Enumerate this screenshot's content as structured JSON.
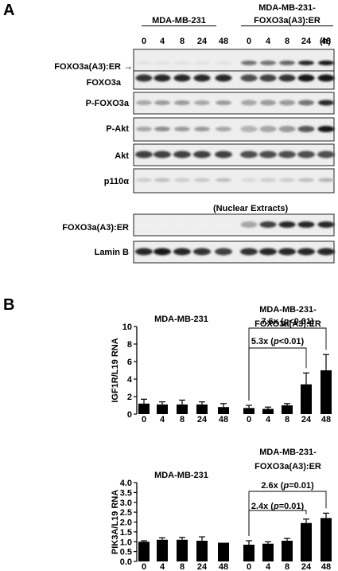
{
  "panel_a": {
    "letter": "A",
    "group1": "MDA-MB-231",
    "group2_line1": "MDA-MB-231-",
    "group2_line2": "FOXO3a(A3):ER",
    "timepoints": [
      "0",
      "4",
      "8",
      "24",
      "48"
    ],
    "time_unit": "(h)",
    "arrow": "→",
    "nuclear_extracts": "(Nuclear Extracts)",
    "blots": [
      {
        "name": "FOXO3a(A3):ER",
        "name2": "FOXO3a"
      },
      {
        "name": "P-FOXO3a"
      },
      {
        "name": "P-Akt"
      },
      {
        "name": "Akt"
      },
      {
        "name": "p110α"
      },
      {
        "name": "FOXO3a(A3):ER"
      },
      {
        "name": "Lamin B"
      }
    ]
  },
  "panel_b": {
    "letter": "B",
    "chart_data": [
      {
        "type": "bar",
        "ylabel": "IGF1R/L19 RNA",
        "ylim": [
          0,
          10
        ],
        "yticks": [
          "0",
          "2",
          "4",
          "6",
          "8",
          "10"
        ],
        "categories": [
          "0",
          "4",
          "8",
          "24",
          "48",
          "0",
          "4",
          "8",
          "24",
          "48"
        ],
        "group_labels": [
          "MDA-MB-231",
          "MDA-MB-231-",
          "FOXO3a(A3):ER"
        ],
        "values": [
          1.2,
          1.1,
          1.1,
          1.1,
          0.8,
          0.7,
          0.6,
          1.0,
          3.4,
          5.0
        ],
        "errors": [
          0.5,
          0.3,
          0.5,
          0.3,
          0.4,
          0.3,
          0.2,
          0.2,
          1.3,
          1.8
        ],
        "annotations": [
          {
            "prefix": "7.6x (",
            "italic": "p",
            "suffix": "<0.01)"
          },
          {
            "prefix": "5.3x (",
            "italic": "p",
            "suffix": "<0.01)"
          }
        ]
      },
      {
        "type": "bar",
        "ylabel": "PIK3A/L19 RNA",
        "ylim": [
          0,
          4
        ],
        "yticks": [
          "0.0",
          "0.5",
          "1.0",
          "1.5",
          "2.0",
          "2.5",
          "3.0",
          "3.5",
          "4.0"
        ],
        "categories": [
          "0",
          "4",
          "8",
          "24",
          "48",
          "0",
          "4",
          "8",
          "24",
          "48"
        ],
        "group_labels": [
          "MDA-MB-231",
          "MDA-MB-231-",
          "FOXO3a(A3):ER"
        ],
        "values": [
          1.0,
          1.1,
          1.1,
          1.05,
          0.95,
          0.85,
          0.9,
          1.05,
          1.95,
          2.2
        ],
        "errors": [
          0.05,
          0.1,
          0.12,
          0.2,
          0.0,
          0.2,
          0.1,
          0.12,
          0.2,
          0.25
        ],
        "annotations": [
          {
            "prefix": "2.6x (",
            "italic": "p",
            "suffix": "=0.01)"
          },
          {
            "prefix": "2.4x (",
            "italic": "p",
            "suffix": "=0.01)"
          }
        ]
      }
    ]
  }
}
